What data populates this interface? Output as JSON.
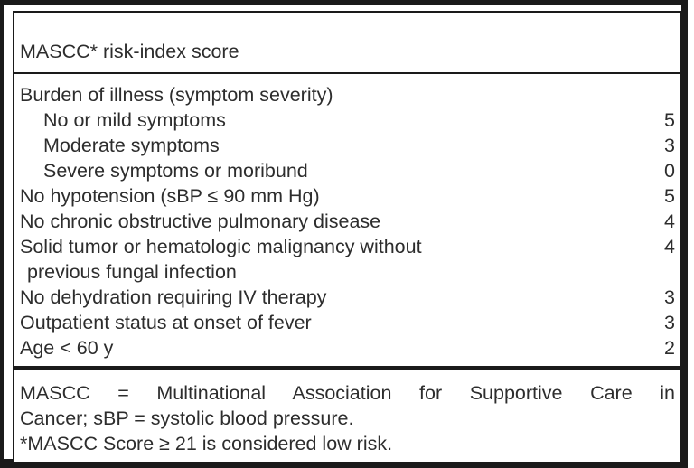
{
  "document": {
    "title": "MASCC* risk-index score",
    "rows": [
      {
        "label": "Burden of illness (symptom severity)",
        "score": "",
        "indent": "none"
      },
      {
        "label": "No or mild symptoms",
        "score": "5",
        "indent": "sub"
      },
      {
        "label": "Moderate symptoms",
        "score": "3",
        "indent": "sub"
      },
      {
        "label": "Severe symptoms or moribund",
        "score": "0",
        "indent": "sub"
      },
      {
        "label": "No hypotension (sBP ≤ 90 mm Hg)",
        "score": "5",
        "indent": "none"
      },
      {
        "label": "No chronic obstructive pulmonary disease",
        "score": "4",
        "indent": "none"
      },
      {
        "label": "Solid tumor or hematologic malignancy without",
        "score": "4",
        "indent": "none"
      },
      {
        "label": "previous fungal infection",
        "score": "",
        "indent": "cont"
      },
      {
        "label": "No dehydration requiring IV therapy",
        "score": "3",
        "indent": "none"
      },
      {
        "label": "Outpatient status at onset of fever",
        "score": "3",
        "indent": "none"
      },
      {
        "label": "Age < 60 y",
        "score": "2",
        "indent": "none"
      }
    ],
    "footnote": {
      "line1": "MASCC = Multinational Association for Supportive Care in",
      "line2": "Cancer; sBP = systolic blood pressure.",
      "line3": "*MASCC Score ≥ 21 is considered low risk."
    }
  },
  "colors": {
    "border": "#1a1a1a",
    "text": "#2d2d2d",
    "background": "#ffffff"
  }
}
